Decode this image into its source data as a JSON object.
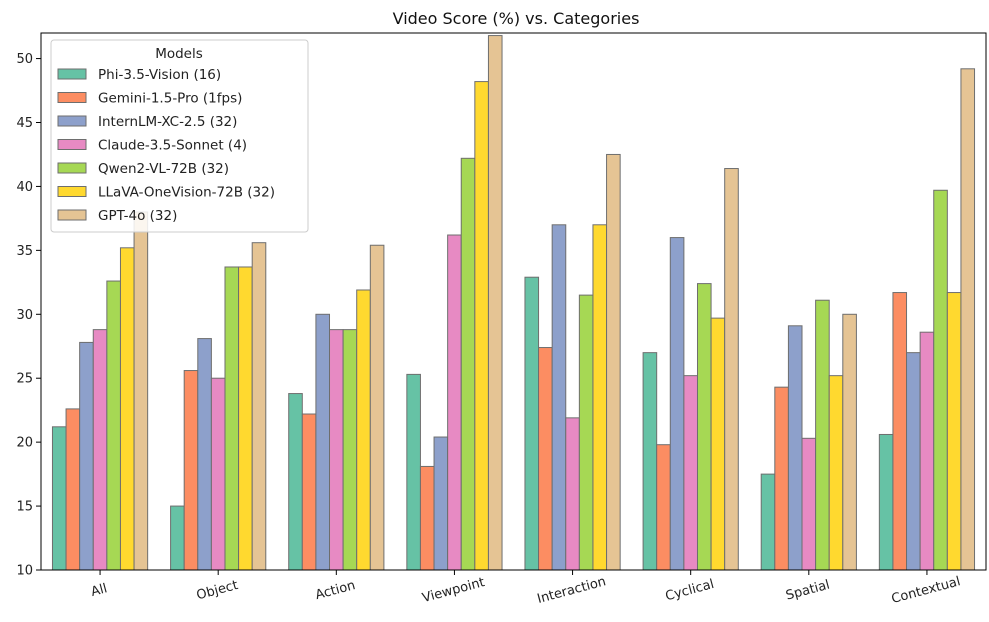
{
  "chart_data": {
    "type": "bar",
    "title": "Video Score (%) vs. Categories",
    "xlabel": "",
    "ylabel": "",
    "ylim": [
      10,
      52
    ],
    "yticks": [
      10,
      15,
      20,
      25,
      30,
      35,
      40,
      45,
      50
    ],
    "categories": [
      "All",
      "Object",
      "Action",
      "Viewpoint",
      "Interaction",
      "Cyclical",
      "Spatial",
      "Contextual"
    ],
    "legend": {
      "title": "Models",
      "placement": "top-left"
    },
    "grid": false,
    "series": [
      {
        "name": "Phi-3.5-Vision (16)",
        "color": "#66c2a5",
        "values": [
          21.2,
          15.0,
          23.8,
          25.3,
          32.9,
          27.0,
          17.5,
          20.6
        ]
      },
      {
        "name": "Gemini-1.5-Pro (1fps)",
        "color": "#fc8d62",
        "values": [
          22.6,
          25.6,
          22.2,
          18.1,
          27.4,
          19.8,
          24.3,
          31.7
        ]
      },
      {
        "name": "InternLM-XC-2.5 (32)",
        "color": "#8da0cb",
        "values": [
          27.8,
          28.1,
          30.0,
          20.4,
          37.0,
          36.0,
          29.1,
          27.0
        ]
      },
      {
        "name": "Claude-3.5-Sonnet (4)",
        "color": "#e78ac3",
        "values": [
          28.8,
          25.0,
          28.8,
          36.2,
          21.9,
          25.2,
          20.3,
          28.6
        ]
      },
      {
        "name": "Qwen2-VL-72B (32)",
        "color": "#a6d854",
        "values": [
          32.6,
          33.7,
          28.8,
          42.2,
          31.5,
          32.4,
          31.1,
          39.7
        ]
      },
      {
        "name": "LLaVA-OneVision-72B (32)",
        "color": "#ffd92f",
        "values": [
          35.2,
          33.7,
          31.9,
          48.2,
          37.0,
          29.7,
          25.2,
          31.7
        ]
      },
      {
        "name": "GPT-4o (32)",
        "color": "#e5c494",
        "values": [
          38.0,
          35.6,
          35.4,
          51.8,
          42.5,
          41.4,
          30.0,
          49.2
        ]
      }
    ]
  }
}
